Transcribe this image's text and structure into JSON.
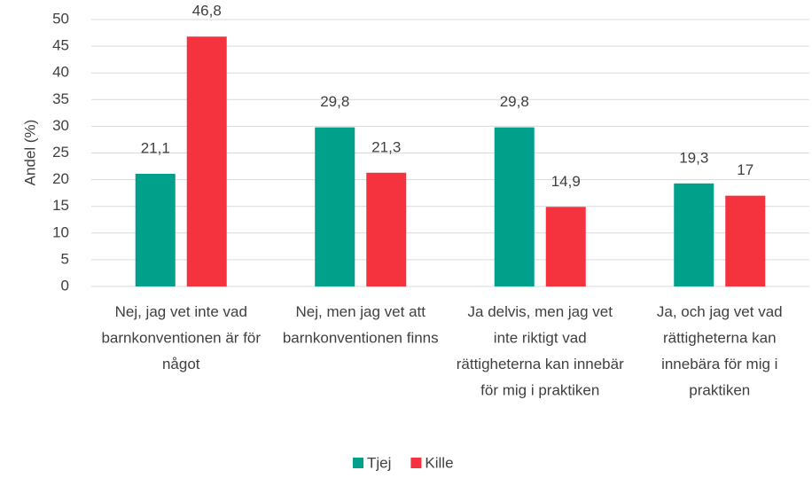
{
  "chart_data": {
    "type": "bar",
    "y_label": "Andel (%)",
    "categories": [
      "Nej, jag vet inte vad barnkonventionen är för något",
      "Nej, men jag vet att barnkonventionen finns",
      "Ja delvis, men jag vet inte riktigt vad rättigheterna kan innebär för mig i praktiken",
      "Ja, och jag vet vad rättigheterna kan innebära för mig i praktiken"
    ],
    "series": [
      {
        "name": "Tjej",
        "color": "#00a08b",
        "values": [
          21.1,
          29.8,
          29.8,
          19.3
        ],
        "value_labels": [
          "21,1",
          "29,8",
          "29,8",
          "19,3"
        ]
      },
      {
        "name": "Kille",
        "color": "#f5333f",
        "values": [
          46.8,
          21.3,
          14.9,
          17
        ],
        "value_labels": [
          "46,8",
          "21,3",
          "14,9",
          "17"
        ]
      }
    ],
    "ylim": [
      0,
      50
    ],
    "yticks": [
      0,
      5,
      10,
      15,
      20,
      25,
      30,
      35,
      40,
      45,
      50
    ],
    "grid": true,
    "legend": "bottom"
  }
}
